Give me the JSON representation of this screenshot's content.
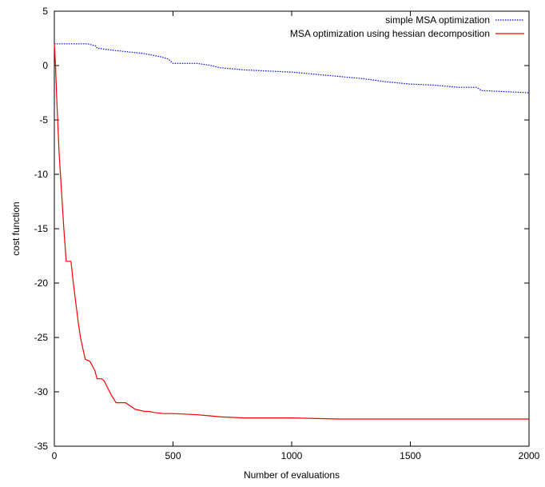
{
  "chart_data": {
    "type": "line",
    "xlabel": "Number of evaluations",
    "ylabel": "cost function",
    "xlim": [
      0,
      2000
    ],
    "ylim": [
      -35,
      5
    ],
    "xticks": [
      0,
      500,
      1000,
      1500,
      2000
    ],
    "yticks": [
      5,
      0,
      -5,
      -10,
      -15,
      -20,
      -25,
      -30,
      -35
    ],
    "grid": false,
    "legend_position": "top-right",
    "series": [
      {
        "name": "simple MSA optimization",
        "color": "#0000ff",
        "style": "dotted",
        "x": [
          0,
          140,
          175,
          180,
          250,
          380,
          450,
          480,
          500,
          600,
          650,
          700,
          800,
          900,
          1000,
          1100,
          1200,
          1300,
          1400,
          1500,
          1600,
          1700,
          1780,
          1800,
          1900,
          2000
        ],
        "y": [
          2.0,
          2.0,
          1.8,
          1.6,
          1.4,
          1.1,
          0.8,
          0.6,
          0.2,
          0.2,
          0.05,
          -0.2,
          -0.4,
          -0.5,
          -0.6,
          -0.8,
          -1.0,
          -1.2,
          -1.5,
          -1.7,
          -1.8,
          -2.0,
          -2.0,
          -2.3,
          -2.4,
          -2.5
        ]
      },
      {
        "name": "MSA optimization using hessian decomposition",
        "color": "#ff0000",
        "style": "solid",
        "x": [
          0,
          5,
          10,
          20,
          40,
          50,
          70,
          80,
          100,
          110,
          130,
          150,
          170,
          180,
          200,
          210,
          240,
          260,
          280,
          300,
          320,
          340,
          360,
          380,
          400,
          420,
          460,
          500,
          600,
          700,
          800,
          1000,
          1200,
          1500,
          1800,
          2000
        ],
        "y": [
          2.0,
          0.0,
          -3.0,
          -8.0,
          -15.0,
          -18.0,
          -18.0,
          -20.0,
          -23.5,
          -25.0,
          -27.0,
          -27.2,
          -28.0,
          -28.8,
          -28.8,
          -29.0,
          -30.3,
          -31.0,
          -31.0,
          -31.0,
          -31.3,
          -31.6,
          -31.7,
          -31.8,
          -31.8,
          -31.9,
          -32.0,
          -32.0,
          -32.1,
          -32.3,
          -32.4,
          -32.4,
          -32.5,
          -32.5,
          -32.5,
          -32.5
        ]
      }
    ]
  }
}
